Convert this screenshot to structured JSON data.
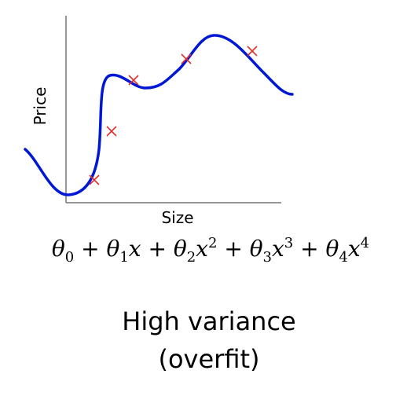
{
  "plot": {
    "y_label": "Price",
    "x_label": "Size"
  },
  "formula": [
    {
      "text": "θ"
    },
    {
      "text": "0",
      "style": "sub"
    },
    {
      "text": " + "
    },
    {
      "text": "θ"
    },
    {
      "text": "1",
      "style": "sub"
    },
    {
      "text": "x"
    },
    {
      "text": " + "
    },
    {
      "text": "θ"
    },
    {
      "text": "2",
      "style": "sub"
    },
    {
      "text": "x"
    },
    {
      "text": "2",
      "style": "sup"
    },
    {
      "text": " + "
    },
    {
      "text": "θ"
    },
    {
      "text": "3",
      "style": "sub"
    },
    {
      "text": "x"
    },
    {
      "text": "3",
      "style": "sup"
    },
    {
      "text": " + "
    },
    {
      "text": "θ"
    },
    {
      "text": "4",
      "style": "sub"
    },
    {
      "text": "x"
    },
    {
      "text": "4",
      "style": "sup"
    }
  ],
  "caption": {
    "line1": "High variance",
    "line2": "(overfit)"
  }
}
